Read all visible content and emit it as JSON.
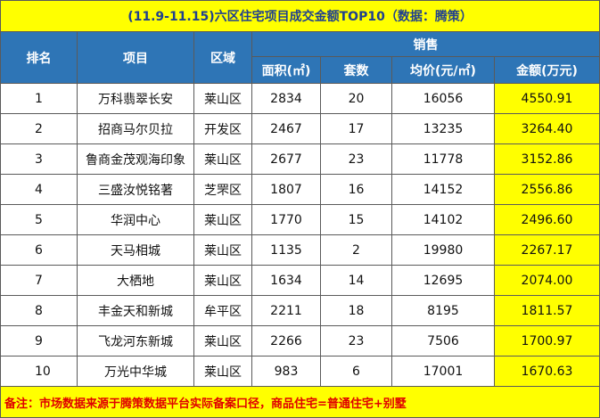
{
  "title": "(11.9-11.15)六区住宅项目成交金额TOP10（数据：腾策）",
  "headers": {
    "rank": "排名",
    "project": "项目",
    "district": "区域",
    "sales": "销售",
    "area": "面积(㎡)",
    "units": "套数",
    "avg_price": "均价(元/㎡)",
    "amount": "金额(万元)"
  },
  "rows": [
    {
      "rank": "1",
      "project": "万科翡翠长安",
      "district": "莱山区",
      "area": "2834",
      "units": "20",
      "avg_price": "16056",
      "amount": "4550.91"
    },
    {
      "rank": "2",
      "project": "招商马尔贝拉",
      "district": "开发区",
      "area": "2467",
      "units": "17",
      "avg_price": "13235",
      "amount": "3264.40"
    },
    {
      "rank": "3",
      "project": "鲁商金茂观海印象",
      "district": "莱山区",
      "area": "2677",
      "units": "23",
      "avg_price": "11778",
      "amount": "3152.86"
    },
    {
      "rank": "4",
      "project": "三盛汝悦铭著",
      "district": "芝罘区",
      "area": "1807",
      "units": "16",
      "avg_price": "14152",
      "amount": "2556.86"
    },
    {
      "rank": "5",
      "project": "华润中心",
      "district": "莱山区",
      "area": "1770",
      "units": "15",
      "avg_price": "14102",
      "amount": "2496.60"
    },
    {
      "rank": "6",
      "project": "天马相城",
      "district": "莱山区",
      "area": "1135",
      "units": "2",
      "avg_price": "19980",
      "amount": "2267.17"
    },
    {
      "rank": "7",
      "project": "大栖地",
      "district": "莱山区",
      "area": "1634",
      "units": "14",
      "avg_price": "12695",
      "amount": "2074.00"
    },
    {
      "rank": "8",
      "project": "丰金天和新城",
      "district": "牟平区",
      "area": "2211",
      "units": "18",
      "avg_price": "8195",
      "amount": "1811.57"
    },
    {
      "rank": "9",
      "project": "飞龙河东新城",
      "district": "莱山区",
      "area": "2266",
      "units": "23",
      "avg_price": "7506",
      "amount": "1700.97"
    },
    {
      "rank": "10",
      "project": "万光中华城",
      "district": "莱山区",
      "area": "983",
      "units": "6",
      "avg_price": "17001",
      "amount": "1670.63"
    }
  ],
  "note": "备注：市场数据来源于腾策数据平台实际备案口径，商品住宅=普通住宅+别墅",
  "colors": {
    "title_bg": "#ffff00",
    "title_text": "#1f3f8f",
    "header_bg": "#2e75b6",
    "amount_bg": "#ffff00",
    "note_text": "#e00000"
  }
}
